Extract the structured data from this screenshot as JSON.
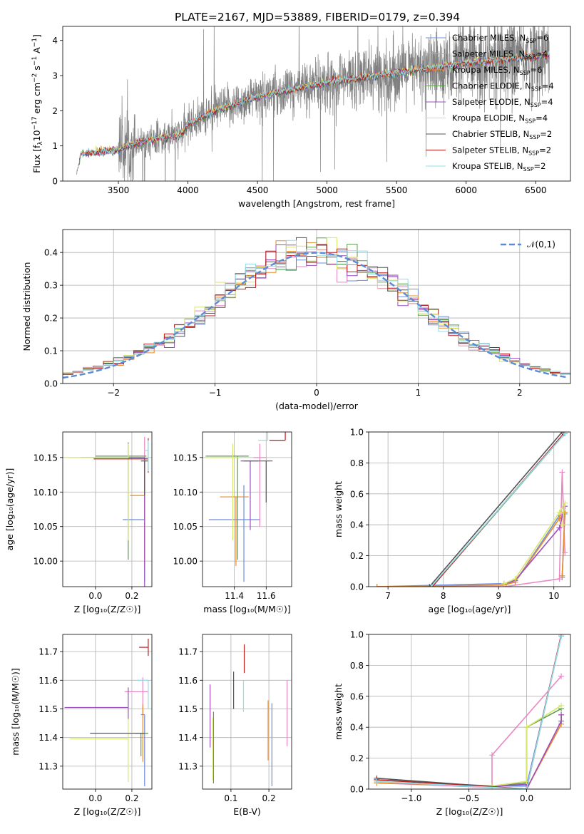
{
  "figure_title": "PLATE=2167, MJD=53889, FIBERID=0179, z=0.394",
  "model_names": [
    "Chabrier MILES",
    "Salpeter MILES",
    "Kroupa MILES",
    "Chabrier ELODIE",
    "Salpeter ELODIE",
    "Kroupa ELODIE",
    "Chabrier STELIB",
    "Salpeter STELIB",
    "Kroupa STELIB"
  ],
  "n_ssp_suffix": [
    "=6",
    "=4",
    "=6",
    "=4",
    "=4",
    "=4",
    "=2",
    "=2",
    "=2"
  ],
  "model_colors": [
    "#6a8ee0",
    "#e887c4",
    "#e98a2a",
    "#5b9a49",
    "#9b4ec0",
    "#d8e66a",
    "#555555",
    "#c01a1a",
    "#8fdde8"
  ],
  "chart_data": [
    {
      "id": "spectrum",
      "type": "line",
      "xlabel": "wavelength [Angstrom, rest frame]",
      "ylabel_parts": [
        "Flux [f",
        "λ",
        "10",
        "−17",
        " erg cm",
        "−2",
        " s",
        "−1",
        " A",
        "−1",
        "]"
      ],
      "xlim": [
        3100,
        6750
      ],
      "ylim": [
        0,
        4.4
      ],
      "xticks": [
        3500,
        4000,
        4500,
        5000,
        5500,
        6000,
        6500
      ],
      "yticks": [
        0,
        1,
        2,
        3,
        4
      ],
      "data_color": "#808080",
      "continuum_knots": {
        "x": [
          3200,
          3230,
          3500,
          3600,
          3800,
          3950,
          4000,
          4200,
          4500,
          5000,
          5500,
          6000,
          6600
        ],
        "y": [
          0.2,
          0.78,
          0.88,
          1.05,
          1.22,
          1.32,
          1.6,
          2.0,
          2.4,
          2.8,
          3.08,
          3.35,
          3.6
        ]
      },
      "legend_loc": "upper right"
    },
    {
      "id": "residual_hist",
      "type": "histogram",
      "xlabel": "(data-model)/error",
      "ylabel": "Normed distribution",
      "xlim": [
        -2.5,
        2.5
      ],
      "ylim": [
        0,
        0.47
      ],
      "xticks": [
        -2,
        -1,
        0,
        1,
        2
      ],
      "yticks": [
        0.0,
        0.1,
        0.2,
        0.3,
        0.4
      ],
      "grid": true,
      "bin_width": 0.1,
      "gaussian": {
        "label": "𝒩(0,1)",
        "mean": 0,
        "sigma": 1,
        "color": "#5b8ad6"
      },
      "legend_loc": "upper right"
    },
    {
      "id": "age_vs_Z",
      "type": "errorbar",
      "xlabel": "Z [log₁₀(Z/Z☉)]",
      "ylabel": "age  [log₁₀(age/yr)]",
      "xlim": [
        -0.18,
        0.31
      ],
      "ylim": [
        9.963,
        10.187
      ],
      "xticks": [
        0.0,
        0.2
      ],
      "yticks": [
        10.0,
        10.05,
        10.1,
        10.15
      ],
      "grid": true,
      "points": [
        {
          "x": 0.27,
          "y": 10.06,
          "xerr": [
            0.12,
            0.0
          ],
          "yerr": [
            0.09,
            0.05
          ]
        },
        {
          "x": 0.27,
          "y": 10.15,
          "xerr": [
            0.28,
            0.0
          ],
          "yerr": [
            0.16,
            0.03
          ]
        },
        {
          "x": 0.27,
          "y": 10.095,
          "xerr": [
            0.08,
            0.0
          ],
          "yerr": [
            0.1,
            0.05
          ]
        },
        {
          "x": 0.18,
          "y": 10.152,
          "xerr": [
            0.18,
            0.1
          ],
          "yerr": [
            0.15,
            0.02
          ]
        },
        {
          "x": 0.27,
          "y": 10.15,
          "xerr": [
            0.35,
            0.0
          ],
          "yerr": [
            0.2,
            0.0
          ]
        },
        {
          "x": 0.18,
          "y": 10.15,
          "xerr": [
            0.35,
            0.0
          ],
          "yerr": [
            0.12,
            0.02
          ]
        },
        {
          "x": 0.27,
          "y": 10.145,
          "xerr": [
            0.02,
            0.02
          ],
          "yerr": [
            0.05,
            0.0
          ]
        },
        {
          "x": 0.29,
          "y": 10.148,
          "xerr": [
            0.3,
            0.0
          ],
          "yerr": [
            0.02,
            0.03
          ]
        },
        {
          "x": 0.29,
          "y": 10.16,
          "xerr": [
            0.02,
            0.0
          ],
          "yerr": [
            0.03,
            0.015
          ]
        }
      ]
    },
    {
      "id": "age_vs_mass",
      "type": "errorbar",
      "xlabel": "mass [log₁₀(M/M☉)]",
      "ylabel": "",
      "xlim": [
        11.2,
        11.76
      ],
      "ylim": [
        9.963,
        10.187
      ],
      "xticks": [
        11.4,
        11.6
      ],
      "yticks": [
        10.0,
        10.05,
        10.1,
        10.15
      ],
      "grid": true,
      "points": [
        {
          "x": 11.46,
          "y": 10.06,
          "xerr": [
            0.22,
            0.1
          ],
          "yerr": [
            0.09,
            0.05
          ]
        },
        {
          "x": 11.56,
          "y": 10.15,
          "xerr": [
            0.04,
            0.04
          ],
          "yerr": [
            0.1,
            0.02
          ]
        },
        {
          "x": 11.41,
          "y": 10.093,
          "xerr": [
            0.1,
            0.08
          ],
          "yerr": [
            0.1,
            0.0
          ]
        },
        {
          "x": 11.42,
          "y": 10.152,
          "xerr": [
            0.2,
            0.07
          ],
          "yerr": [
            0.15,
            0.0
          ]
        },
        {
          "x": 11.5,
          "y": 10.145,
          "xerr": [
            0.04,
            0.05
          ],
          "yerr": [
            0.1,
            0.0
          ]
        },
        {
          "x": 11.39,
          "y": 10.15,
          "xerr": [
            0.17,
            0.04
          ],
          "yerr": [
            0.12,
            0.02
          ]
        },
        {
          "x": 11.6,
          "y": 10.145,
          "xerr": [
            0.16,
            0.04
          ],
          "yerr": [
            0.06,
            0.0
          ]
        },
        {
          "x": 11.72,
          "y": 10.175,
          "xerr": [
            0.1,
            0.0
          ],
          "yerr": [
            0.0,
            0.07
          ]
        },
        {
          "x": 11.61,
          "y": 10.175,
          "xerr": [
            0.06,
            0.0
          ],
          "yerr": [
            0.0,
            0.06
          ]
        }
      ]
    },
    {
      "id": "massweight_vs_age",
      "type": "line",
      "xlabel": "age  [log₁₀(age/yr)]",
      "ylabel": "mass weight",
      "xlim": [
        6.65,
        10.3
      ],
      "ylim": [
        0.0,
        1.0
      ],
      "xticks": [
        7,
        8,
        9,
        10
      ],
      "yticks": [
        0.0,
        0.2,
        0.4,
        0.6,
        0.8,
        1.0
      ],
      "grid": true,
      "series": [
        {
          "x": [
            6.8,
            9.1,
            9.3,
            10.1,
            10.2,
            10.15
          ],
          "y": [
            0.0,
            0.02,
            0.03,
            0.46,
            0.47,
            0.06
          ]
        },
        {
          "x": [
            6.8,
            9.1,
            10.1,
            10.15,
            10.2
          ],
          "y": [
            0.0,
            0.0,
            0.05,
            0.74,
            0.22
          ]
        },
        {
          "x": [
            6.8,
            9.1,
            9.3,
            10.1,
            10.2,
            10.15
          ],
          "y": [
            0.0,
            0.01,
            0.03,
            0.44,
            0.48,
            0.07
          ]
        },
        {
          "x": [
            7.8,
            10.2
          ],
          "y": [
            0.0,
            0.99
          ]
        },
        {
          "x": [
            9.1,
            9.3,
            10.1,
            10.2
          ],
          "y": [
            0.02,
            0.04,
            0.38,
            0.52
          ]
        },
        {
          "x": [
            9.1,
            9.3,
            10.1,
            10.2,
            10.15
          ],
          "y": [
            0.02,
            0.05,
            0.48,
            0.54,
            0.4
          ]
        },
        {
          "x": [
            7.75,
            10.15
          ],
          "y": [
            0.0,
            1.0
          ]
        },
        {
          "x": [
            7.8,
            10.18
          ],
          "y": [
            0.0,
            0.99
          ]
        },
        {
          "x": [
            7.78,
            10.2
          ],
          "y": [
            0.0,
            0.99
          ]
        }
      ]
    },
    {
      "id": "mass_vs_Z",
      "type": "errorbar",
      "xlabel": "Z [log₁₀(Z/Z☉)]",
      "ylabel": "mass [log₁₀(M/M☉)]",
      "xlim": [
        -0.18,
        0.31
      ],
      "ylim": [
        11.22,
        11.76
      ],
      "xticks": [
        0.0,
        0.2
      ],
      "yticks": [
        11.3,
        11.4,
        11.5,
        11.6,
        11.7
      ],
      "grid": true,
      "points": [
        {
          "x": 0.27,
          "y": 11.48,
          "xerr": [
            0.02,
            0.0
          ],
          "yerr": [
            0.25,
            0.0
          ]
        },
        {
          "x": 0.26,
          "y": 11.56,
          "xerr": [
            0.1,
            0.03
          ],
          "yerr": [
            0.08,
            0.05
          ]
        },
        {
          "x": 0.26,
          "y": 11.415,
          "xerr": [
            0.0,
            0.03
          ],
          "yerr": [
            0.1,
            0.1
          ]
        },
        {
          "x": 0.25,
          "y": 11.415,
          "xerr": [
            0.03,
            0.04
          ],
          "yerr": [
            0.08,
            0.0
          ]
        },
        {
          "x": 0.18,
          "y": 11.505,
          "xerr": [
            0.35,
            0.0
          ],
          "yerr": [
            0.04,
            0.07
          ]
        },
        {
          "x": 0.18,
          "y": 11.395,
          "xerr": [
            0.32,
            0.0
          ],
          "yerr": [
            0.15,
            0.07
          ]
        },
        {
          "x": 0.27,
          "y": 11.415,
          "xerr": [
            0.3,
            0.0
          ],
          "yerr": [
            0.0,
            0.0
          ]
        },
        {
          "x": 0.29,
          "y": 11.715,
          "xerr": [
            0.05,
            0.0
          ],
          "yerr": [
            0.03,
            0.03
          ]
        },
        {
          "x": 0.29,
          "y": 11.6,
          "xerr": [
            0.06,
            0.0
          ],
          "yerr": [
            0.1,
            0.0
          ]
        }
      ]
    },
    {
      "id": "mass_vs_ebv",
      "type": "errorbar",
      "xlabel": "E(B-V)",
      "ylabel": "",
      "xlim": [
        0.025,
        0.26
      ],
      "ylim": [
        11.22,
        11.76
      ],
      "xticks": [
        0.1,
        0.2
      ],
      "yticks": [
        11.3,
        11.4,
        11.5,
        11.6,
        11.7
      ],
      "grid": true,
      "points": [
        {
          "x": 0.208,
          "y": 11.41,
          "xerr": [
            0.0,
            0.0
          ],
          "yerr": [
            0.18,
            0.11
          ]
        },
        {
          "x": 0.248,
          "y": 11.49,
          "xerr": [
            0.0,
            0.0
          ],
          "yerr": [
            0.12,
            0.11
          ]
        },
        {
          "x": 0.198,
          "y": 11.42,
          "xerr": [
            0.0,
            0.0
          ],
          "yerr": [
            0.1,
            0.11
          ]
        },
        {
          "x": 0.054,
          "y": 11.37,
          "xerr": [
            0.0,
            0.0
          ],
          "yerr": [
            0.13,
            0.12
          ]
        },
        {
          "x": 0.045,
          "y": 11.475,
          "xerr": [
            0.0,
            0.0
          ],
          "yerr": [
            0.11,
            0.11
          ]
        },
        {
          "x": 0.052,
          "y": 11.37,
          "xerr": [
            0.0,
            0.0
          ],
          "yerr": [
            0.12,
            0.1
          ]
        },
        {
          "x": 0.107,
          "y": 11.57,
          "xerr": [
            0.0,
            0.0
          ],
          "yerr": [
            0.07,
            0.06
          ]
        },
        {
          "x": 0.135,
          "y": 11.675,
          "xerr": [
            0.0,
            0.0
          ],
          "yerr": [
            0.05,
            0.05
          ]
        },
        {
          "x": 0.133,
          "y": 11.54,
          "xerr": [
            0.0,
            0.0
          ],
          "yerr": [
            0.05,
            0.06
          ]
        }
      ]
    },
    {
      "id": "massweight_vs_Z",
      "type": "line",
      "xlabel": "Z [log₁₀(Z/Z☉)]",
      "ylabel": "mass weight",
      "xlim": [
        -1.37,
        0.38
      ],
      "ylim": [
        0.0,
        1.0
      ],
      "xticks": [
        -1.0,
        -0.5,
        0.0
      ],
      "yticks": [
        0.0,
        0.2,
        0.4,
        0.6,
        0.8,
        1.0
      ],
      "grid": true,
      "series": [
        {
          "x": [
            -1.3,
            -0.3,
            0.0,
            0.3
          ],
          "y": [
            0.06,
            0.02,
            0.02,
            0.99
          ]
        },
        {
          "x": [
            -1.3,
            -0.3,
            -0.3,
            0.3
          ],
          "y": [
            0.04,
            0.01,
            0.22,
            0.73
          ]
        },
        {
          "x": [
            -1.3,
            -0.3,
            0.0,
            0.0,
            0.3,
            0.3
          ],
          "y": [
            0.04,
            0.02,
            0.03,
            0.0,
            0.42,
            0.48
          ]
        },
        {
          "x": [
            -0.3,
            0.0,
            0.0,
            0.3
          ],
          "y": [
            0.02,
            0.04,
            0.4,
            0.52
          ]
        },
        {
          "x": [
            -0.3,
            0.0,
            0.0,
            0.3,
            0.3
          ],
          "y": [
            0.02,
            0.03,
            0.0,
            0.44,
            0.48
          ]
        },
        {
          "x": [
            -0.3,
            0.0,
            0.0,
            0.3
          ],
          "y": [
            0.02,
            0.05,
            0.4,
            0.54
          ]
        },
        {
          "x": [
            -1.3,
            0.0,
            0.3
          ],
          "y": [
            0.07,
            0.0,
            0.99
          ]
        },
        {
          "x": [
            -1.3,
            0.0,
            0.3
          ],
          "y": [
            0.06,
            0.0,
            1.0
          ]
        },
        {
          "x": [
            -1.3,
            0.0,
            0.3
          ],
          "y": [
            0.05,
            0.0,
            0.99
          ]
        }
      ]
    }
  ]
}
